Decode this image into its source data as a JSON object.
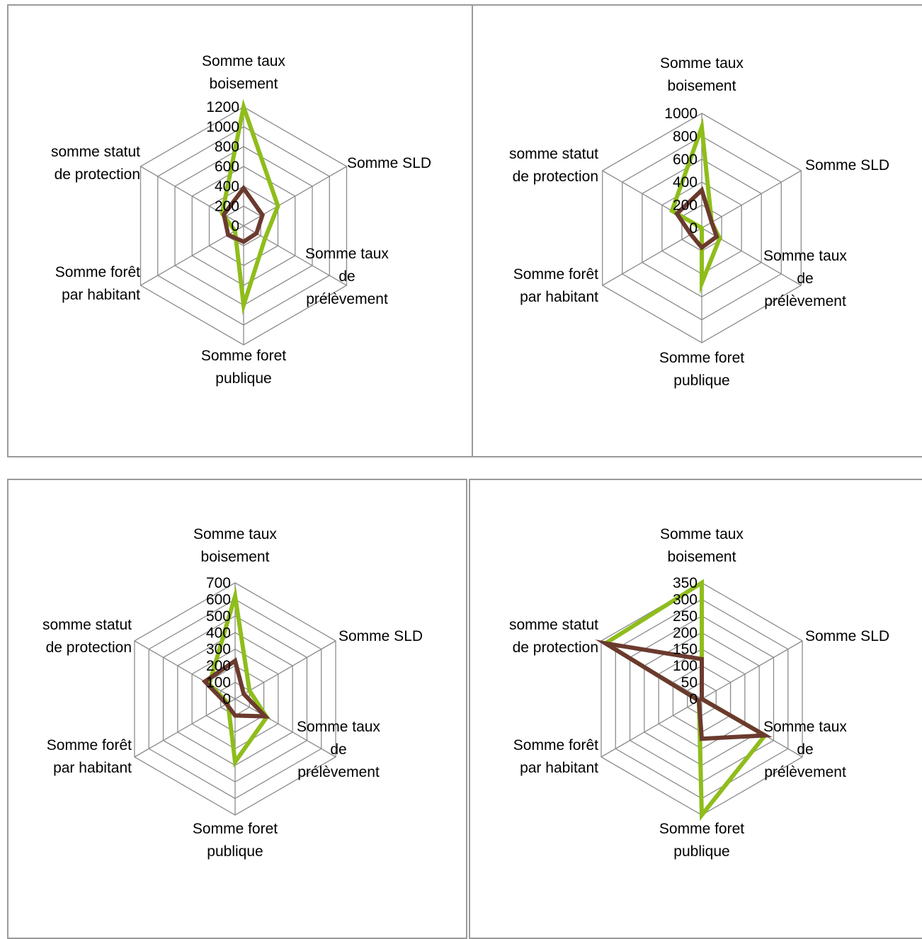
{
  "axis_names": [
    "Somme taux boisement",
    "Somme SLD",
    "Somme taux de prélèvement",
    "Somme foret publique",
    "Somme forêt par habitant",
    "somme statut de protection"
  ],
  "colors": {
    "series_a": "#8fbd1b",
    "series_b": "#6b3a2e",
    "grid": "#8c8c8c"
  },
  "chart_data": [
    {
      "type": "radar",
      "axes_lines": [
        "Somme taux\nboisement",
        "Somme SLD",
        "Somme taux\nde\nprélèvement",
        "Somme foret\npublique",
        "Somme forêt\npar habitant",
        "somme statut\nde protection"
      ],
      "ylim": [
        0,
        1200
      ],
      "tick_labels": [
        "0",
        "200",
        "400",
        "600",
        "800",
        "1000",
        "1200"
      ],
      "grid": true,
      "series": [
        {
          "color": "#8fbd1b",
          "values": [
            1200,
            400,
            250,
            800,
            100,
            250
          ]
        },
        {
          "color": "#6b3a2e",
          "values": [
            380,
            220,
            150,
            160,
            180,
            230
          ]
        }
      ]
    },
    {
      "type": "radar",
      "axes_lines": [
        "Somme taux\nboisement",
        "Somme SLD",
        "Somme taux\nde\nprélèvement",
        "Somme foret\npublique",
        "Somme forêt\npar habitant",
        "somme statut\nde protection"
      ],
      "ylim": [
        0,
        1000
      ],
      "tick_labels": [
        "0",
        "200",
        "400",
        "600",
        "800",
        "1000"
      ],
      "grid": true,
      "series": [
        {
          "color": "#8fbd1b",
          "values": [
            880,
            100,
            180,
            480,
            0,
            300
          ]
        },
        {
          "color": "#6b3a2e",
          "values": [
            330,
            100,
            150,
            170,
            110,
            250
          ]
        }
      ]
    },
    {
      "type": "radar",
      "axes_lines": [
        "Somme taux\nboisement",
        "Somme SLD",
        "Somme taux\nde\nprélèvement",
        "Somme foret\npublique",
        "Somme forêt\npar habitant",
        "somme statut\nde protection"
      ],
      "ylim": [
        0,
        700
      ],
      "tick_labels": [
        "0",
        "100",
        "200",
        "300",
        "400",
        "500",
        "600",
        "700"
      ],
      "grid": true,
      "series": [
        {
          "color": "#8fbd1b",
          "values": [
            620,
            100,
            220,
            380,
            50,
            180
          ]
        },
        {
          "color": "#6b3a2e",
          "values": [
            230,
            60,
            210,
            100,
            60,
            210
          ]
        }
      ]
    },
    {
      "type": "radar",
      "axes_lines": [
        "Somme taux\nboisement",
        "Somme SLD",
        "Somme taux\nde\nprélèvement",
        "Somme foret\npublique",
        "Somme forêt\npar habitant",
        "somme statut\nde protection"
      ],
      "ylim": [
        0,
        350
      ],
      "tick_labels": [
        "0",
        "50",
        "100",
        "150",
        "200",
        "250",
        "300",
        "350"
      ],
      "grid": true,
      "series": [
        {
          "color": "#8fbd1b",
          "values": [
            350,
            0,
            220,
            350,
            10,
            335
          ]
        },
        {
          "color": "#6b3a2e",
          "values": [
            120,
            0,
            220,
            120,
            10,
            335
          ]
        }
      ]
    }
  ]
}
